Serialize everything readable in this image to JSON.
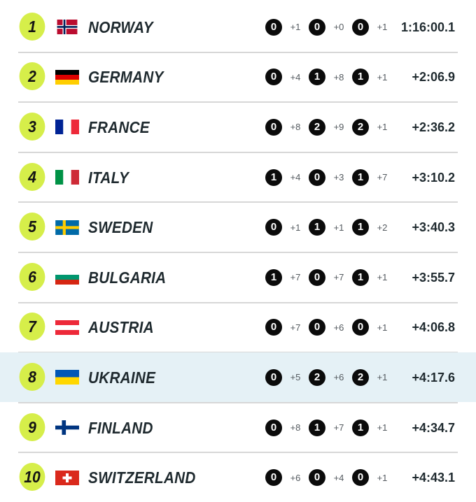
{
  "results": [
    {
      "rank": "1",
      "country": "NORWAY",
      "flag": "flag-norway-icon",
      "shooting": [
        {
          "miss": "0",
          "pen": "+1"
        },
        {
          "miss": "0",
          "pen": "+0"
        },
        {
          "miss": "0",
          "pen": "+1"
        }
      ],
      "time": "1:16:00.1",
      "highlighted": false
    },
    {
      "rank": "2",
      "country": "GERMANY",
      "flag": "flag-germany-icon",
      "shooting": [
        {
          "miss": "0",
          "pen": "+4"
        },
        {
          "miss": "1",
          "pen": "+8"
        },
        {
          "miss": "1",
          "pen": "+1"
        }
      ],
      "time": "+2:06.9",
      "highlighted": false
    },
    {
      "rank": "3",
      "country": "FRANCE",
      "flag": "flag-france-icon",
      "shooting": [
        {
          "miss": "0",
          "pen": "+8"
        },
        {
          "miss": "2",
          "pen": "+9"
        },
        {
          "miss": "2",
          "pen": "+1"
        }
      ],
      "time": "+2:36.2",
      "highlighted": false
    },
    {
      "rank": "4",
      "country": "ITALY",
      "flag": "flag-italy-icon",
      "shooting": [
        {
          "miss": "1",
          "pen": "+4"
        },
        {
          "miss": "0",
          "pen": "+3"
        },
        {
          "miss": "1",
          "pen": "+7"
        }
      ],
      "time": "+3:10.2",
      "highlighted": false
    },
    {
      "rank": "5",
      "country": "SWEDEN",
      "flag": "flag-sweden-icon",
      "shooting": [
        {
          "miss": "0",
          "pen": "+1"
        },
        {
          "miss": "1",
          "pen": "+1"
        },
        {
          "miss": "1",
          "pen": "+2"
        }
      ],
      "time": "+3:40.3",
      "highlighted": false
    },
    {
      "rank": "6",
      "country": "BULGARIA",
      "flag": "flag-bulgaria-icon",
      "shooting": [
        {
          "miss": "1",
          "pen": "+7"
        },
        {
          "miss": "0",
          "pen": "+7"
        },
        {
          "miss": "1",
          "pen": "+1"
        }
      ],
      "time": "+3:55.7",
      "highlighted": false
    },
    {
      "rank": "7",
      "country": "AUSTRIA",
      "flag": "flag-austria-icon",
      "shooting": [
        {
          "miss": "0",
          "pen": "+7"
        },
        {
          "miss": "0",
          "pen": "+6"
        },
        {
          "miss": "0",
          "pen": "+1"
        }
      ],
      "time": "+4:06.8",
      "highlighted": false
    },
    {
      "rank": "8",
      "country": "UKRAINE",
      "flag": "flag-ukraine-icon",
      "shooting": [
        {
          "miss": "0",
          "pen": "+5"
        },
        {
          "miss": "2",
          "pen": "+6"
        },
        {
          "miss": "2",
          "pen": "+1"
        }
      ],
      "time": "+4:17.6",
      "highlighted": true
    },
    {
      "rank": "9",
      "country": "FINLAND",
      "flag": "flag-finland-icon",
      "shooting": [
        {
          "miss": "0",
          "pen": "+8"
        },
        {
          "miss": "1",
          "pen": "+7"
        },
        {
          "miss": "1",
          "pen": "+1"
        }
      ],
      "time": "+4:34.7",
      "highlighted": false
    },
    {
      "rank": "10",
      "country": "SWITZERLAND",
      "flag": "flag-switzerland-icon",
      "shooting": [
        {
          "miss": "0",
          "pen": "+6"
        },
        {
          "miss": "0",
          "pen": "+4"
        },
        {
          "miss": "0",
          "pen": "+1"
        }
      ],
      "time": "+4:43.1",
      "highlighted": false
    }
  ],
  "colors": {
    "rank_badge": "#d6ee4a",
    "highlight_row": "#e5f1f6",
    "miss_circle": "#0b0b0b",
    "text": "#1f2a2f",
    "penalty_text": "#555b60",
    "divider": "#d7d7d7"
  }
}
